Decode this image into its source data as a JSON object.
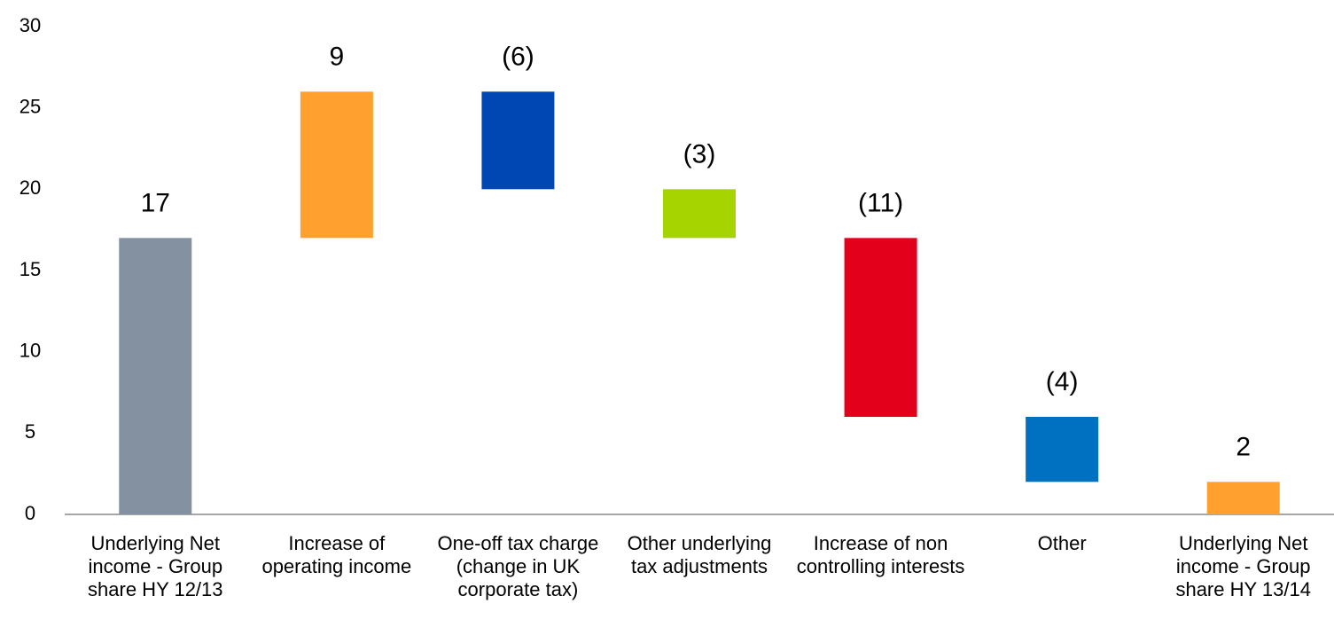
{
  "chart_data": {
    "type": "waterfall",
    "categories": [
      "Underlying Net income - Group share HY 12/13",
      "Increase of operating income",
      "One-off tax charge (change in UK corporate tax)",
      "Other underlying tax adjustments",
      "Increase of non controlling interests",
      "Other",
      "Underlying Net income - Group share HY 13/14"
    ],
    "values": [
      17,
      9,
      -6,
      -3,
      -11,
      -4,
      2
    ],
    "value_labels": [
      "17",
      "9",
      "(6)",
      "(3)",
      "(11)",
      "(4)",
      "2"
    ],
    "measure": [
      "total",
      "relative",
      "relative",
      "relative",
      "relative",
      "relative",
      "total"
    ],
    "colors": [
      "#8391a0",
      "#ffa02f",
      "#0047b3",
      "#a5d400",
      "#e3001b",
      "#0070c0",
      "#ffa02f"
    ],
    "ylim": [
      0,
      30
    ],
    "yticks": [
      0,
      5,
      10,
      15,
      20,
      25,
      30
    ],
    "grid": false
  }
}
